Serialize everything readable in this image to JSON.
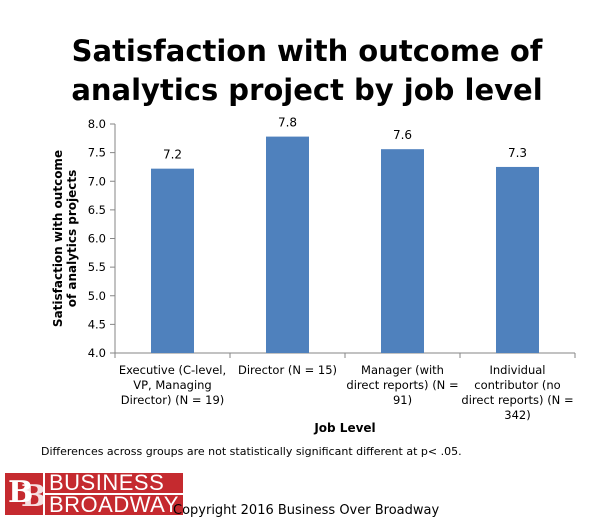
{
  "chart_data": {
    "type": "bar",
    "title_lines": [
      "Satisfaction with outcome of",
      "analytics project by job level"
    ],
    "ylabel_lines": [
      "Satisfaction with outcome",
      "of analytics projects"
    ],
    "xlabel": "Job Level",
    "ylim": [
      4.0,
      8.0
    ],
    "yticks": [
      "4.0",
      "4.5",
      "5.0",
      "5.5",
      "6.0",
      "6.5",
      "7.0",
      "7.5",
      "8.0"
    ],
    "categories": [
      [
        "Executive (C-level,",
        "VP, Managing",
        "Director) (N = 19)"
      ],
      [
        "Director (N = 15)"
      ],
      [
        "Manager (with",
        "direct reports) (N =",
        "91)"
      ],
      [
        "Individual",
        "contributor (no",
        "direct reports) (N =",
        "342)"
      ]
    ],
    "values": [
      7.22,
      7.78,
      7.56,
      7.25
    ],
    "data_labels": [
      "7.2",
      "7.8",
      "7.6",
      "7.3"
    ],
    "bar_color": "#4f81bd",
    "grid": false,
    "legend": "none"
  },
  "footnote": "Differences across groups are not statistically significant different at  p< .05.",
  "logo": {
    "line1": "BUSINESS",
    "line2": "BROADWAY",
    "mark": "BB",
    "color": "#c52a2f"
  },
  "copyright": "Copyright 2016 Business Over Broadway"
}
